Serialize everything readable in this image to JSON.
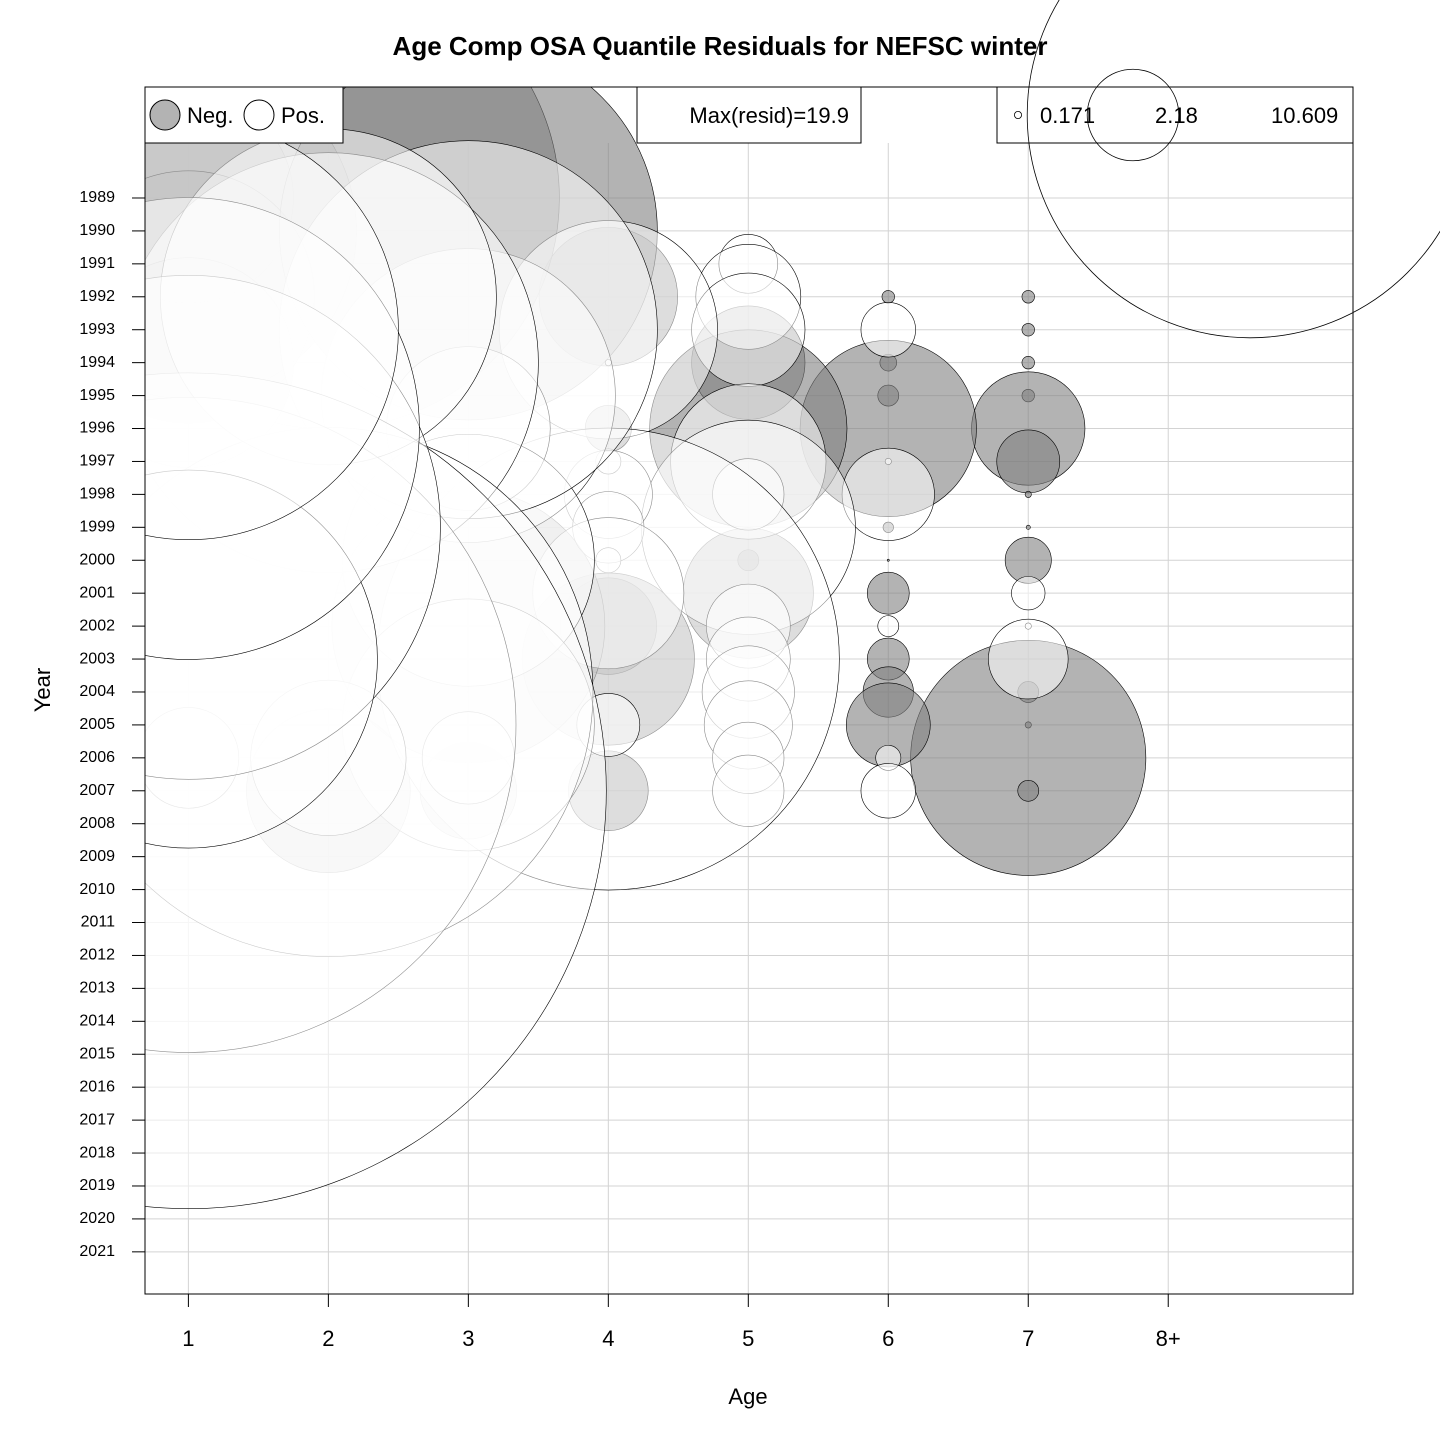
{
  "chart_data": {
    "type": "bubble",
    "title": "Age Comp OSA Quantile Residuals for NEFSC winter",
    "x_label": "Age",
    "y_label": "Year",
    "xlim": [
      0.69,
      9.32
    ],
    "xticks": [
      1,
      2,
      3,
      4,
      5,
      6,
      7,
      {
        "value": 8,
        "label": "8+"
      }
    ],
    "ylim": [
      2022.28,
      1985.63
    ],
    "yticks": [
      1989,
      1990,
      1991,
      1992,
      1993,
      1994,
      1995,
      1996,
      1997,
      1998,
      1999,
      2000,
      2001,
      2002,
      2003,
      2004,
      2005,
      2006,
      2007,
      2008,
      2009,
      2010,
      2011,
      2012,
      2013,
      2014,
      2015,
      2016,
      2017,
      2018,
      2019,
      2020,
      2021
    ],
    "grid": true,
    "max_label": "Max(resid)=19.9",
    "size_legend": [
      {
        "value": 0.171,
        "label": "0.171"
      },
      2.18,
      10.609
    ],
    "series": [
      {
        "name": "Neg.",
        "color": "#808080",
        "x": [
          7,
          7,
          7,
          7,
          7,
          7,
          7,
          7,
          7,
          7,
          7,
          7,
          7,
          6,
          6,
          6,
          6,
          6,
          6,
          6,
          6,
          6,
          6,
          5,
          5,
          5,
          5,
          4,
          4,
          4,
          4,
          4,
          3,
          3,
          2,
          2,
          1,
          1,
          1,
          1,
          3
        ],
        "y": [
          1992,
          1993,
          1994,
          1995,
          1996,
          1997,
          1998,
          1999,
          2000,
          2004,
          2005,
          2006,
          2007,
          1992,
          1994,
          1995,
          1996,
          1999,
          2000,
          2001,
          2003,
          2004,
          2005,
          1994,
          1996,
          2000,
          2001,
          1992,
          1996,
          2002,
          2003,
          2007,
          2007,
          2002,
          2007,
          1989,
          1989,
          1990,
          1992,
          1994,
          1990
        ],
        "values": [
          -0.3,
          -0.3,
          -0.3,
          -0.3,
          -2.7,
          -1.5,
          -0.15,
          -0.1,
          -1.1,
          -0.5,
          -0.15,
          -5.6,
          -0.5,
          -0.3,
          -0.4,
          -0.5,
          -4.2,
          -0.25,
          -0.05,
          -1,
          -1,
          -1.2,
          -2,
          -2.7,
          -4.7,
          -0.5,
          -3.1,
          -3.3,
          -1.1,
          -2.3,
          -4.1,
          -1.9,
          -2.3,
          -6.5,
          -3.9,
          -11,
          -5,
          -8,
          -6,
          -5,
          -9
        ]
      },
      {
        "name": "Pos.",
        "color": "#ffffff",
        "x": [
          7,
          7,
          7,
          6,
          6,
          6,
          6,
          6,
          6,
          5,
          5,
          5,
          5,
          5,
          5,
          5,
          5,
          5,
          5,
          5,
          5,
          4,
          4,
          4,
          4,
          4,
          4,
          4,
          4,
          4,
          3,
          3,
          3,
          3,
          3,
          3,
          2,
          2,
          2,
          2,
          1,
          1,
          1,
          1,
          1,
          1,
          1
        ],
        "y": [
          2001,
          2002,
          2003,
          1993,
          1997,
          1998,
          2002,
          2006,
          2007,
          1991,
          1992,
          1993,
          1997,
          1998,
          1999,
          2002,
          2003,
          2004,
          2005,
          2006,
          2007,
          1993,
          1994,
          1997,
          1998,
          1999,
          2000,
          2001,
          2003,
          2005,
          1995,
          1996,
          2000,
          2005,
          2006,
          1993,
          1994,
          2004,
          2006,
          1992,
          2006,
          2005,
          2007,
          1999,
          2003,
          1996,
          1993
        ],
        "values": [
          0.8,
          0.15,
          1.9,
          1.3,
          0.15,
          2.2,
          0.5,
          0.6,
          1.3,
          1.4,
          2.5,
          2.7,
          3.7,
          1.7,
          5.1,
          2,
          2,
          2.2,
          2.1,
          1.7,
          1.7,
          5.2,
          0.15,
          0.6,
          2.1,
          1.7,
          0.6,
          3.6,
          11,
          1.5,
          7,
          3.9,
          6,
          6,
          2.2,
          9,
          10,
          12.6,
          3.7,
          8,
          2.4,
          15.6,
          19.9,
          12,
          9,
          11,
          10
        ]
      }
    ]
  }
}
